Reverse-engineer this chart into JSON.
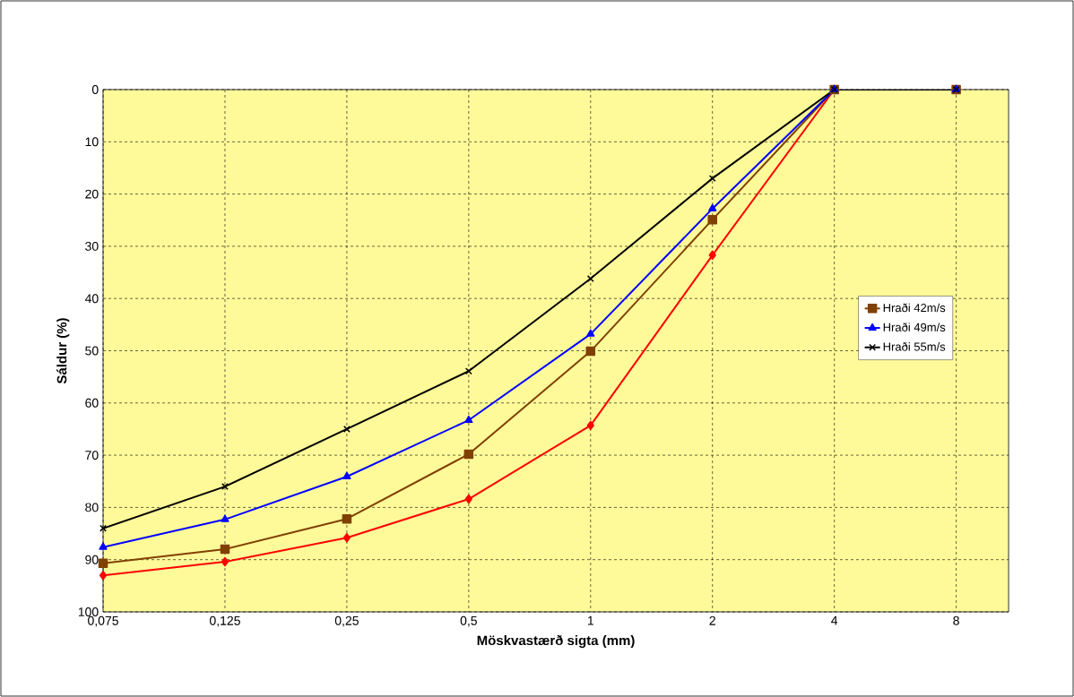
{
  "chart_data": {
    "type": "line",
    "xlabel": "Möskvastærð sigta (mm)",
    "ylabel": "Sáldur (%)",
    "categories": [
      "0,075",
      "0,125",
      "0,25",
      "0,5",
      "1",
      "2",
      "4",
      "8"
    ],
    "series": [
      {
        "color": "#ff0000",
        "marker": "diamond",
        "values": [
          93,
          90.4,
          85.8,
          78.4,
          64.3,
          31.7,
          0,
          0
        ]
      },
      {
        "name": "Hraði 42m/s",
        "color": "#804000",
        "marker": "square",
        "values": [
          90.7,
          88,
          82.2,
          69.8,
          50.1,
          24.9,
          0,
          0
        ]
      },
      {
        "name": "Hraði 49m/s",
        "color": "#0000ff",
        "marker": "triangle",
        "values": [
          87.6,
          82.3,
          74.1,
          63.3,
          46.8,
          22.8,
          0,
          0
        ]
      },
      {
        "name": "Hraði 55m/s",
        "color": "#000000",
        "marker": "cross",
        "values": [
          84,
          76,
          65,
          53.9,
          36.2,
          17,
          0,
          0
        ]
      }
    ],
    "ylim": [
      100,
      0
    ],
    "yticks": [
      0,
      10,
      20,
      30,
      40,
      50,
      60,
      70,
      80,
      90,
      100
    ],
    "grid": true,
    "legend": "right",
    "line_style": "solid"
  }
}
